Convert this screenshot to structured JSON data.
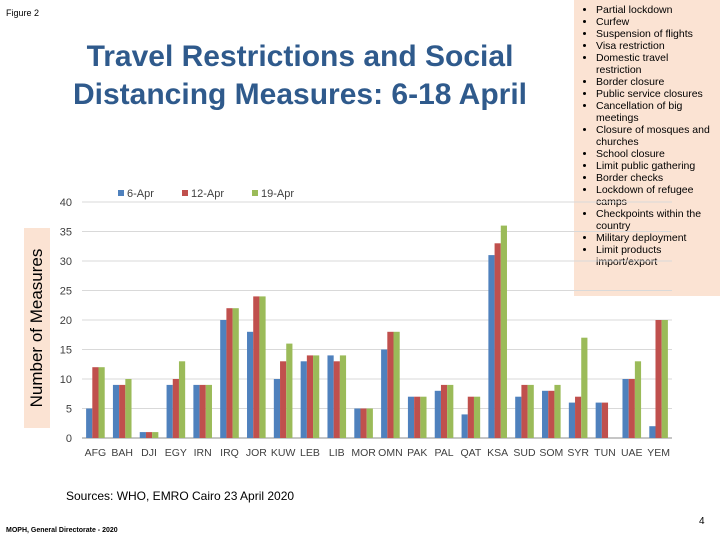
{
  "figure_label": "Figure 2",
  "title_line1": "Travel Restrictions and Social",
  "title_line2": "Distancing Measures: 6-18 April",
  "measures": [
    "Partial lockdown",
    "Curfew",
    "Suspension of flights",
    "Visa restriction",
    "Domestic travel restriction",
    "Border closure",
    "Public service closures",
    "Cancellation of big meetings",
    "Closure of mosques and churches",
    "School closure",
    "Limit public gathering",
    "Border checks",
    "Lockdown of refugee camps",
    "Checkpoints within the country",
    "Military deployment",
    "Limit products import/export"
  ],
  "sources": "Sources: WHO, EMRO Cairo 23 April 2020",
  "footer": "MOPH, General Directorate - 2020",
  "page_number": "4",
  "chart_data": {
    "type": "bar",
    "ylabel": "Number of Measures",
    "ylim": [
      0,
      40
    ],
    "yticks": [
      0,
      5,
      10,
      15,
      20,
      25,
      30,
      35,
      40
    ],
    "grid": true,
    "legend_position": "top",
    "categories": [
      "AFG",
      "BAH",
      "DJI",
      "EGY",
      "IRN",
      "IRQ",
      "JOR",
      "KUW",
      "LEB",
      "LIB",
      "MOR",
      "OMN",
      "PAK",
      "PAL",
      "QAT",
      "KSA",
      "SUD",
      "SOM",
      "SYR",
      "TUN",
      "UAE",
      "YEM"
    ],
    "series": [
      {
        "name": "6-Apr",
        "color": "#4f81bd",
        "values": [
          5,
          9,
          1,
          9,
          9,
          20,
          18,
          10,
          13,
          14,
          5,
          15,
          7,
          8,
          4,
          31,
          7,
          8,
          6,
          6,
          10,
          2
        ]
      },
      {
        "name": "12-Apr",
        "color": "#c0504d",
        "values": [
          12,
          9,
          1,
          10,
          9,
          22,
          24,
          13,
          14,
          13,
          5,
          18,
          7,
          9,
          7,
          33,
          9,
          8,
          7,
          6,
          10,
          20
        ]
      },
      {
        "name": "19-Apr",
        "color": "#9bbb59",
        "values": [
          12,
          10,
          1,
          13,
          9,
          22,
          24,
          16,
          14,
          14,
          5,
          18,
          7,
          9,
          7,
          36,
          9,
          9,
          17,
          0,
          13,
          20
        ]
      }
    ]
  }
}
